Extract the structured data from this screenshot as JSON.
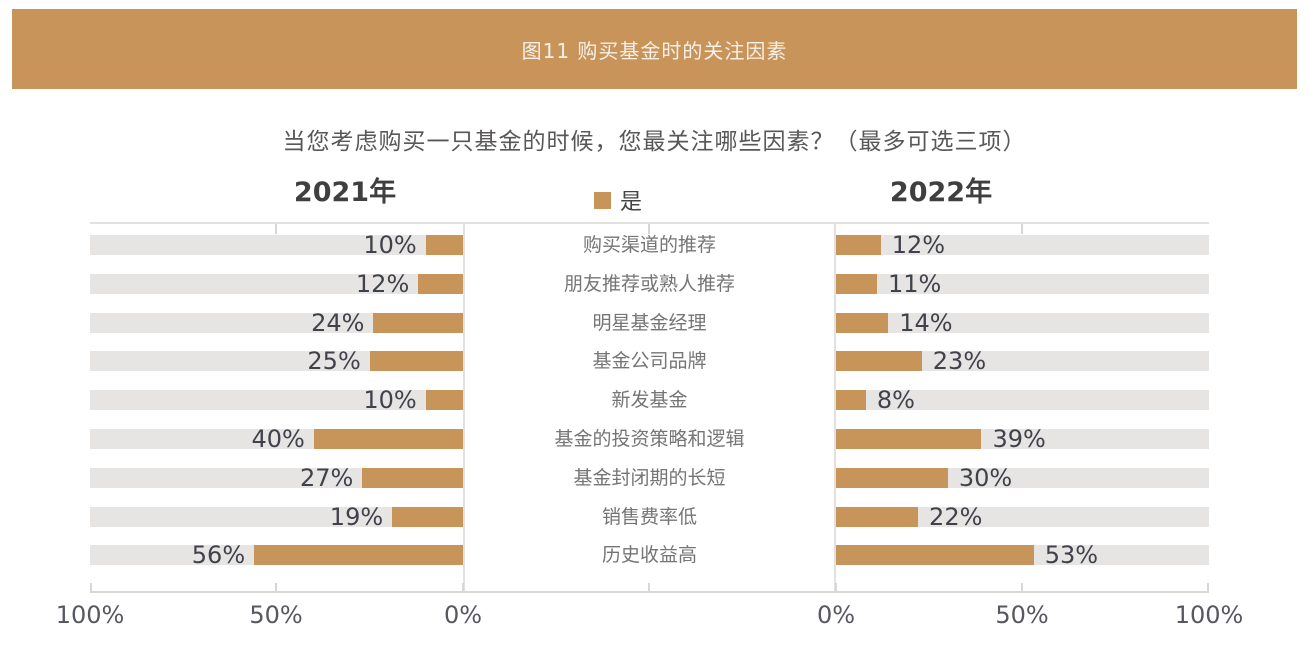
{
  "header": {
    "title": "图11 购买基金时的关注因素",
    "bg_color": "#C9945A",
    "text_color": "#F5F0E8"
  },
  "question": "当您考虑购买一只基金的时候，您最关注哪些因素？（最多可选三项）",
  "panels": {
    "left_title": "2021年",
    "right_title": "2022年"
  },
  "legend": {
    "label": "是",
    "swatch_color": "#C7945A"
  },
  "colors": {
    "bar": "#C7945A",
    "track": "#E7E5E3",
    "axis": "#D9D7D5",
    "value_label": "#40414B",
    "category_label": "#757575",
    "axis_label": "#56575F"
  },
  "chart_data": {
    "type": "bar",
    "orientation": "horizontal-butterfly",
    "title": "图11 购买基金时的关注因素",
    "subtitle": "当您考虑购买一只基金的时候，您最关注哪些因素？（最多可选三项）",
    "categories": [
      "购买渠道的推荐",
      "朋友推荐或熟人推荐",
      "明星基金经理",
      "基金公司品牌",
      "新发基金",
      "基金的投资策略和逻辑",
      "基金封闭期的长短",
      "销售费率低",
      "历史收益高"
    ],
    "series": [
      {
        "name": "2021年",
        "direction": "right-to-left",
        "values": [
          10,
          12,
          24,
          25,
          10,
          40,
          27,
          19,
          56
        ]
      },
      {
        "name": "2022年",
        "direction": "left-to-right",
        "values": [
          12,
          11,
          14,
          23,
          8,
          39,
          30,
          22,
          53
        ]
      }
    ],
    "value_suffix": "%",
    "xlim": [
      0,
      100
    ],
    "grid": false,
    "legend_position": "top-center",
    "left_axis_ticks": [
      "100%",
      "50%",
      "0%"
    ],
    "right_axis_ticks": [
      "0%",
      "50%",
      "100%"
    ]
  }
}
